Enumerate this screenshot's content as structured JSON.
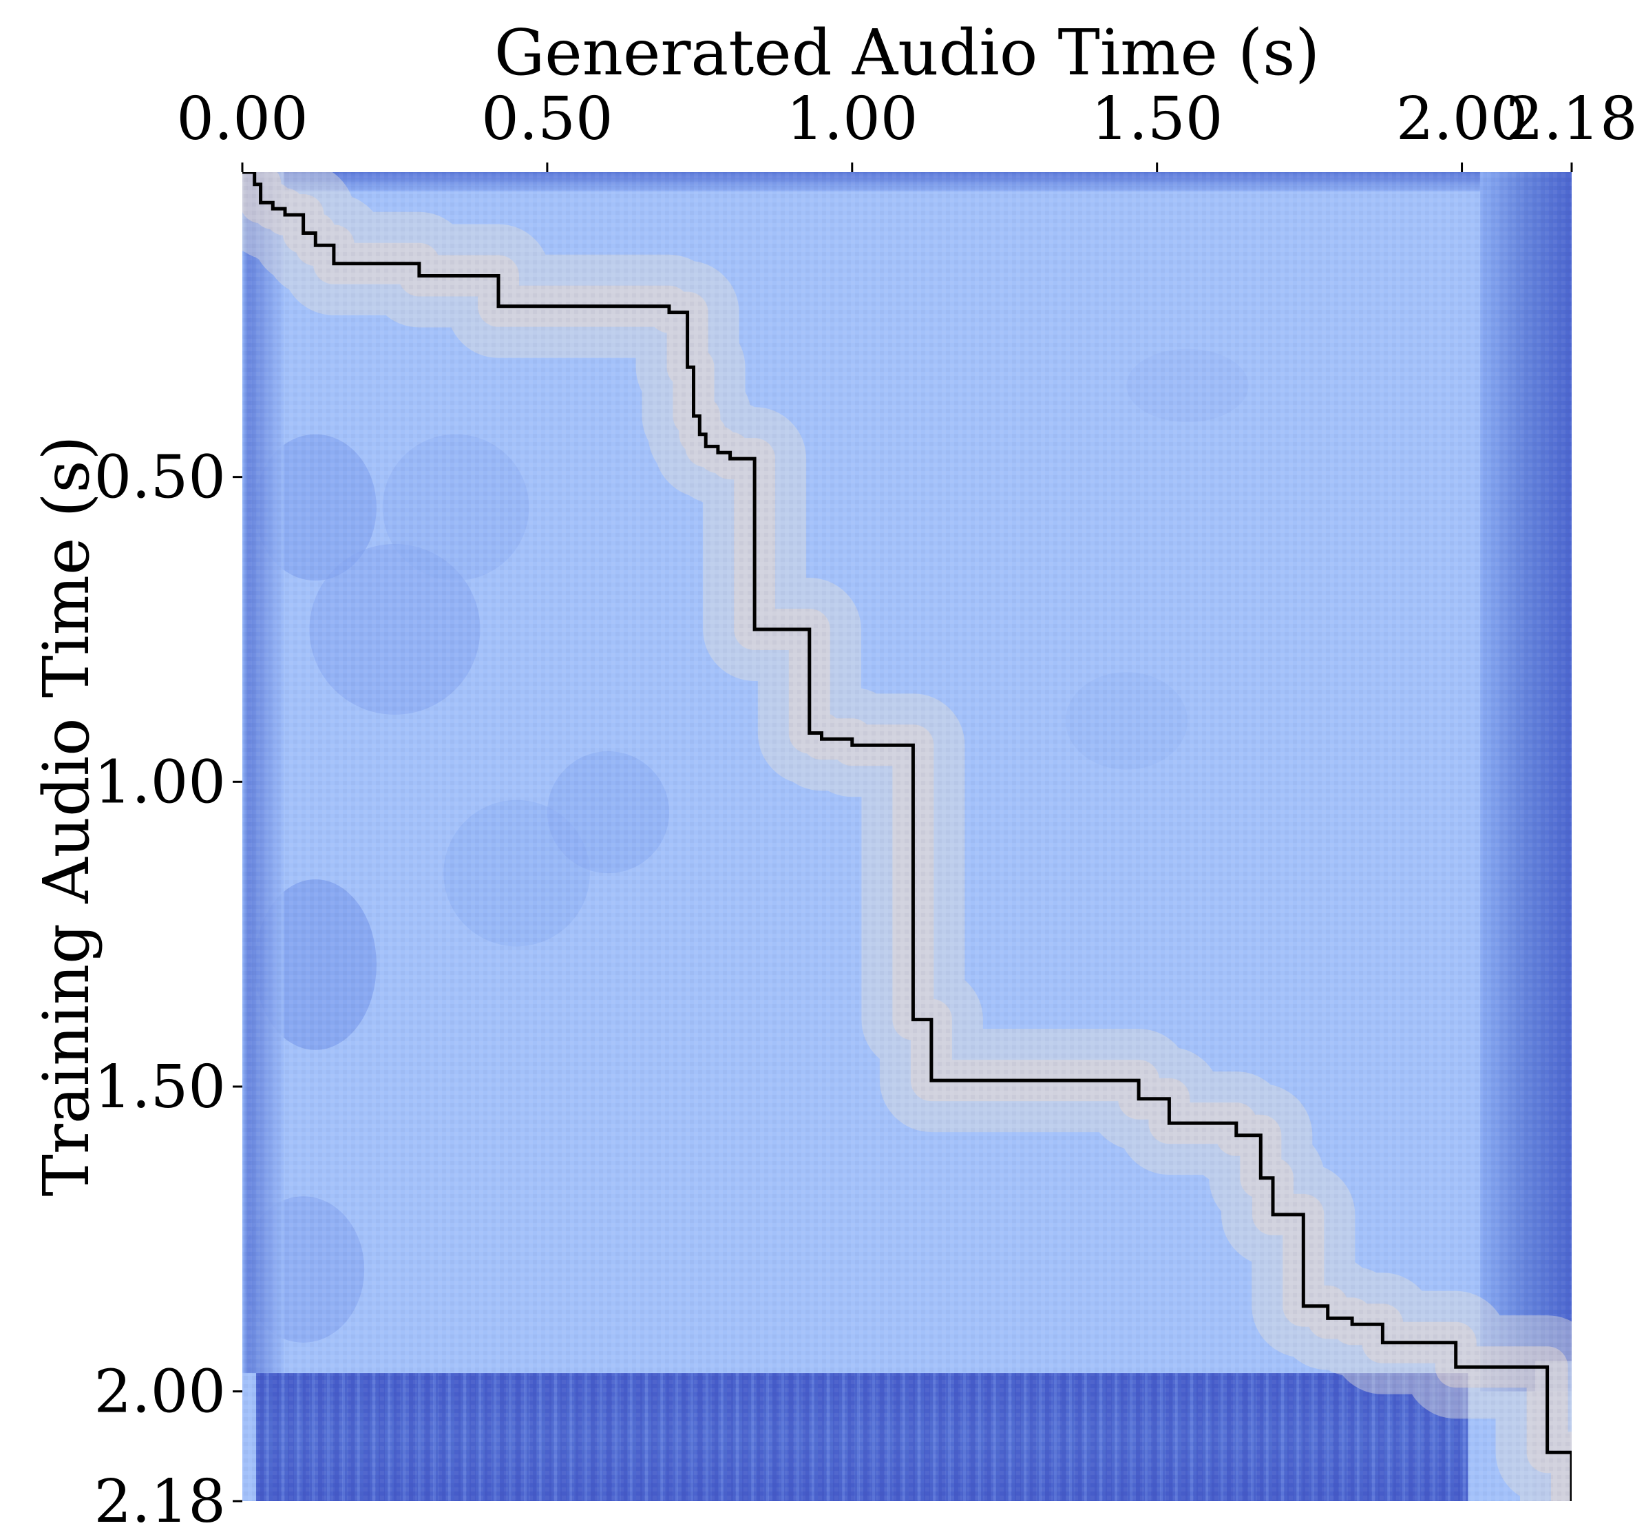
{
  "chart_data": {
    "type": "heatmap",
    "title": "",
    "xlabel": "Generated Audio Time (s)",
    "ylabel": "Training Audio Time (s)",
    "xaxis_position": "top",
    "xlim": [
      0,
      2.18
    ],
    "ylim": [
      0,
      2.18
    ],
    "y_inverted": true,
    "x_ticks": [
      {
        "value": 0.0,
        "label": "0.00"
      },
      {
        "value": 0.5,
        "label": "0.50"
      },
      {
        "value": 1.0,
        "label": "1.00"
      },
      {
        "value": 1.5,
        "label": "1.50"
      },
      {
        "value": 2.0,
        "label": "2.00"
      },
      {
        "value": 2.18,
        "label": "2.18"
      }
    ],
    "y_ticks": [
      {
        "value": 0.5,
        "label": "0.50"
      },
      {
        "value": 1.0,
        "label": "1.00"
      },
      {
        "value": 1.5,
        "label": "1.50"
      },
      {
        "value": 2.0,
        "label": "2.00"
      },
      {
        "value": 2.18,
        "label": "2.18"
      }
    ],
    "colormap": "coolwarm",
    "colors": {
      "low": "#3b4cc0",
      "mid": "#aac7fd",
      "high": "#dddcdc",
      "path": "#000000"
    },
    "heatmap_description_points": {
      "diagonal_similarity": "high along alignment path",
      "speech_end_generated": 2.0,
      "speech_end_training": 1.96
    },
    "alignment_path": {
      "name": "",
      "x": [
        0.0,
        0.02,
        0.02,
        0.03,
        0.03,
        0.05,
        0.05,
        0.07,
        0.07,
        0.1,
        0.1,
        0.12,
        0.12,
        0.15,
        0.15,
        0.29,
        0.29,
        0.42,
        0.42,
        0.7,
        0.7,
        0.73,
        0.73,
        0.74,
        0.74,
        0.75,
        0.75,
        0.76,
        0.76,
        0.78,
        0.78,
        0.8,
        0.8,
        0.84,
        0.84,
        0.93,
        0.93,
        0.95,
        0.95,
        1.0,
        1.0,
        1.1,
        1.1,
        1.13,
        1.13,
        1.47,
        1.47,
        1.52,
        1.52,
        1.63,
        1.63,
        1.67,
        1.67,
        1.69,
        1.69,
        1.74,
        1.74,
        1.78,
        1.78,
        1.82,
        1.82,
        1.87,
        1.87,
        1.99,
        1.99,
        2.14,
        2.14,
        2.18,
        2.18
      ],
      "y": [
        0.0,
        0.0,
        0.02,
        0.02,
        0.05,
        0.05,
        0.06,
        0.06,
        0.07,
        0.07,
        0.1,
        0.1,
        0.12,
        0.12,
        0.15,
        0.15,
        0.17,
        0.17,
        0.22,
        0.22,
        0.23,
        0.23,
        0.32,
        0.32,
        0.4,
        0.4,
        0.43,
        0.43,
        0.45,
        0.45,
        0.46,
        0.46,
        0.47,
        0.47,
        0.75,
        0.75,
        0.92,
        0.92,
        0.93,
        0.93,
        0.94,
        0.94,
        1.39,
        1.39,
        1.49,
        1.49,
        1.52,
        1.52,
        1.56,
        1.56,
        1.58,
        1.58,
        1.65,
        1.65,
        1.71,
        1.71,
        1.86,
        1.86,
        1.88,
        1.88,
        1.89,
        1.89,
        1.92,
        1.92,
        1.96,
        1.96,
        2.1,
        2.1,
        2.18
      ]
    }
  }
}
